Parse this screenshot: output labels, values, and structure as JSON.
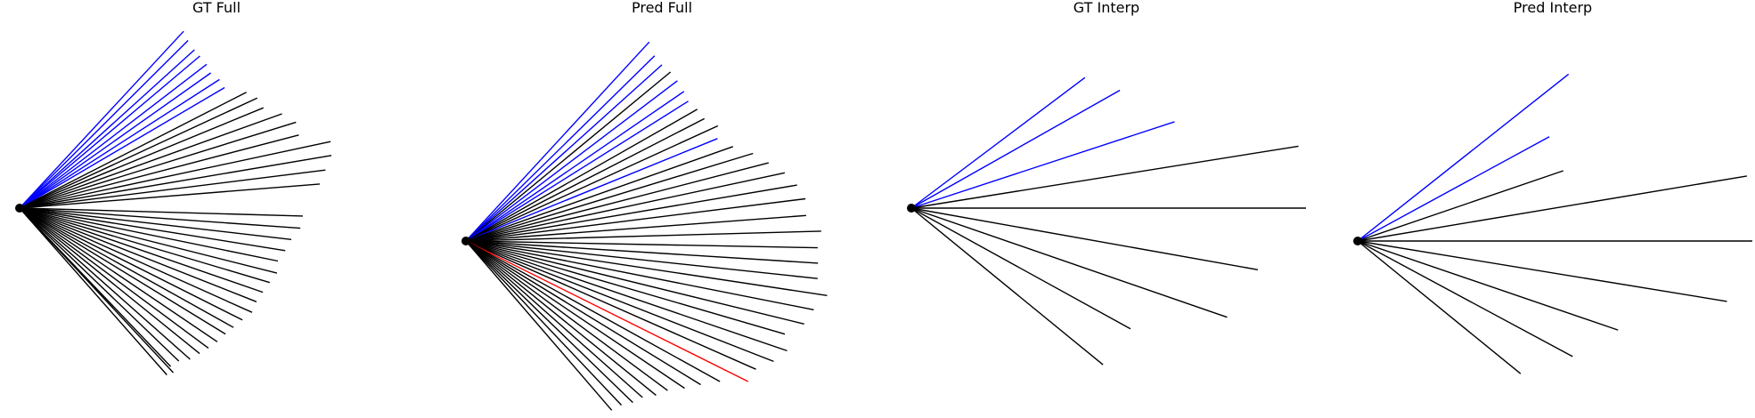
{
  "panels": [
    {
      "title": "GT Full",
      "rays": [
        {
          "angle": 47.2,
          "length": 271,
          "color": "#0000ff"
        },
        {
          "angle": 44.9,
          "length": 267,
          "color": "#0000ff"
        },
        {
          "angle": 42.2,
          "length": 265,
          "color": "#0000ff"
        },
        {
          "angle": 40.2,
          "length": 265,
          "color": "#0000ff"
        },
        {
          "angle": 37.6,
          "length": 265,
          "color": "#0000ff"
        },
        {
          "angle": 35.3,
          "length": 263,
          "color": "#0000ff"
        },
        {
          "angle": 32.8,
          "length": 267,
          "color": "#0000ff"
        },
        {
          "angle": 30.5,
          "length": 267,
          "color": "#0000ff"
        },
        {
          "angle": 27.1,
          "length": 286,
          "color": "#000000"
        },
        {
          "angle": 24.9,
          "length": 294,
          "color": "#000000"
        },
        {
          "angle": 22.4,
          "length": 296,
          "color": "#000000"
        },
        {
          "angle": 19.8,
          "length": 313,
          "color": "#000000"
        },
        {
          "angle": 17.3,
          "length": 325,
          "color": "#000000"
        },
        {
          "angle": 14.7,
          "length": 324,
          "color": "#000000"
        },
        {
          "angle": 12.1,
          "length": 357,
          "color": "#000000"
        },
        {
          "angle": 9.6,
          "length": 355,
          "color": "#000000"
        },
        {
          "angle": 7.1,
          "length": 346,
          "color": "#000000"
        },
        {
          "angle": 4.6,
          "length": 338,
          "color": "#000000"
        },
        {
          "angle": -1.6,
          "length": 318,
          "color": "#000000"
        },
        {
          "angle": -4.1,
          "length": 316,
          "color": "#000000"
        },
        {
          "angle": -6.6,
          "length": 307,
          "color": "#000000"
        },
        {
          "angle": -9.1,
          "length": 302,
          "color": "#000000"
        },
        {
          "angle": -11.6,
          "length": 296,
          "color": "#000000"
        },
        {
          "angle": -14.2,
          "length": 298,
          "color": "#000000"
        },
        {
          "angle": -16.6,
          "length": 293,
          "color": "#000000"
        },
        {
          "angle": -19.1,
          "length": 289,
          "color": "#000000"
        },
        {
          "angle": -21.6,
          "length": 286,
          "color": "#000000"
        },
        {
          "angle": -24.2,
          "length": 286,
          "color": "#000000"
        },
        {
          "angle": -26.7,
          "length": 280,
          "color": "#000000"
        },
        {
          "angle": -29.2,
          "length": 275,
          "color": "#000000"
        },
        {
          "angle": -31.5,
          "length": 271,
          "color": "#000000"
        },
        {
          "angle": -34.1,
          "length": 268,
          "color": "#000000"
        },
        {
          "angle": -36.6,
          "length": 264,
          "color": "#000000"
        },
        {
          "angle": -39.0,
          "length": 260,
          "color": "#000000"
        },
        {
          "angle": -41.6,
          "length": 256,
          "color": "#000000"
        },
        {
          "angle": -43.9,
          "length": 248,
          "color": "#000000"
        },
        {
          "angle": -46.4,
          "length": 246,
          "color": "#000000"
        },
        {
          "angle": -47.0,
          "length": 253,
          "color": "#000000"
        },
        {
          "angle": -48.6,
          "length": 250,
          "color": "#000000"
        }
      ]
    },
    {
      "title": "Pred Full",
      "rays": [
        {
          "angle": 47.4,
          "length": 304,
          "color": "#0000ff"
        },
        {
          "angle": 44.5,
          "length": 297,
          "color": "#0000ff"
        },
        {
          "angle": 42.0,
          "length": 296,
          "color": "#0000ff"
        },
        {
          "angle": 39.6,
          "length": 298,
          "color": "#000000"
        },
        {
          "angle": 37.2,
          "length": 298,
          "color": "#0000ff"
        },
        {
          "angle": 34.5,
          "length": 297,
          "color": "#0000ff"
        },
        {
          "angle": 32.2,
          "length": 295,
          "color": "#0000ff"
        },
        {
          "angle": 29.7,
          "length": 299,
          "color": "#000000"
        },
        {
          "angle": 27.2,
          "length": 301,
          "color": "#000000"
        },
        {
          "angle": 24.6,
          "length": 311,
          "color": "#000000"
        },
        {
          "angle": 22.2,
          "length": 305,
          "color": "#0000ff"
        },
        {
          "angle": 19.5,
          "length": 318,
          "color": "#000000"
        },
        {
          "angle": 17.0,
          "length": 337,
          "color": "#000000"
        },
        {
          "angle": 14.5,
          "length": 351,
          "color": "#000000"
        },
        {
          "angle": 12.1,
          "length": 366,
          "color": "#000000"
        },
        {
          "angle": 9.6,
          "length": 377,
          "color": "#000000"
        },
        {
          "angle": 7.1,
          "length": 384,
          "color": "#000000"
        },
        {
          "angle": 4.3,
          "length": 383,
          "color": "#000000"
        },
        {
          "angle": 1.6,
          "length": 399,
          "color": "#000000"
        },
        {
          "angle": -1.1,
          "length": 395,
          "color": "#000000"
        },
        {
          "angle": -3.6,
          "length": 396,
          "color": "#000000"
        },
        {
          "angle": -6.1,
          "length": 397,
          "color": "#000000"
        },
        {
          "angle": -8.6,
          "length": 410,
          "color": "#000000"
        },
        {
          "angle": -11.2,
          "length": 398,
          "color": "#000000"
        },
        {
          "angle": -13.8,
          "length": 391,
          "color": "#000000"
        },
        {
          "angle": -16.3,
          "length": 373,
          "color": "#000000"
        },
        {
          "angle": -18.9,
          "length": 381,
          "color": "#000000"
        },
        {
          "angle": -21.4,
          "length": 371,
          "color": "#000000"
        },
        {
          "angle": -23.9,
          "length": 356,
          "color": "#000000"
        },
        {
          "angle": -26.5,
          "length": 354,
          "color": "#ff0000"
        },
        {
          "angle": -29.0,
          "length": 326,
          "color": "#000000"
        },
        {
          "angle": -31.5,
          "length": 309,
          "color": "#000000"
        },
        {
          "angle": -34.0,
          "length": 296,
          "color": "#000000"
        },
        {
          "angle": -36.6,
          "length": 282,
          "color": "#000000"
        },
        {
          "angle": -39.1,
          "length": 275,
          "color": "#000000"
        },
        {
          "angle": -41.6,
          "length": 265,
          "color": "#000000"
        },
        {
          "angle": -44.1,
          "length": 261,
          "color": "#000000"
        },
        {
          "angle": -46.6,
          "length": 254,
          "color": "#000000"
        },
        {
          "angle": -49.3,
          "length": 251,
          "color": "#000000"
        }
      ]
    },
    {
      "title": "GT Interp",
      "rays": [
        {
          "angle": 37.0,
          "length": 244,
          "color": "#0000ff"
        },
        {
          "angle": 29.5,
          "length": 269,
          "color": "#0000ff"
        },
        {
          "angle": 18.2,
          "length": 311,
          "color": "#0000ff"
        },
        {
          "angle": 9.1,
          "length": 440,
          "color": "#000000"
        },
        {
          "angle": 0.0,
          "length": 443,
          "color": "#000000"
        },
        {
          "angle": -10.1,
          "length": 395,
          "color": "#000000"
        },
        {
          "angle": -19.1,
          "length": 375,
          "color": "#000000"
        },
        {
          "angle": -28.9,
          "length": 281,
          "color": "#000000"
        },
        {
          "angle": -39.3,
          "length": 278,
          "color": "#000000"
        }
      ]
    },
    {
      "title": "Pred Interp",
      "rays": [
        {
          "angle": 38.4,
          "length": 302,
          "color": "#0000ff"
        },
        {
          "angle": 28.6,
          "length": 245,
          "color": "#0000ff"
        },
        {
          "angle": 18.9,
          "length": 244,
          "color": "#000000"
        },
        {
          "angle": 9.5,
          "length": 443,
          "color": "#000000"
        },
        {
          "angle": 0.0,
          "length": 443,
          "color": "#000000"
        },
        {
          "angle": -9.3,
          "length": 420,
          "color": "#000000"
        },
        {
          "angle": -18.9,
          "length": 309,
          "color": "#000000"
        },
        {
          "angle": -28.3,
          "length": 274,
          "color": "#000000"
        },
        {
          "angle": -39.2,
          "length": 236,
          "color": "#000000"
        }
      ]
    }
  ]
}
